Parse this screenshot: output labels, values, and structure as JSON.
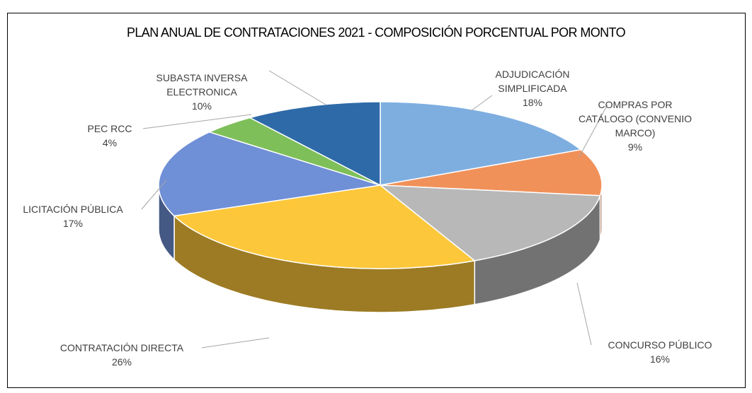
{
  "chart_data": {
    "type": "pie3d",
    "title": "PLAN ANUAL DE CONTRATACIONES 2021 - COMPOSICIÓN PORCENTUAL POR MONTO",
    "categories": [
      "ADJUDICACIÓN SIMPLIFICADA",
      "COMPRAS POR CATÁLOGO (CONVENIO MARCO)",
      "CONCURSO PÚBLICO",
      "CONTRATACIÓN DIRECTA",
      "LICITACIÓN PÚBLICA",
      "PEC RCC",
      "SUBASTA INVERSA ELECTRONICA"
    ],
    "values": [
      18,
      9,
      16,
      26,
      17,
      4,
      10
    ],
    "value_labels": [
      "18%",
      "9%",
      "16%",
      "26%",
      "17%",
      "4%",
      "10%"
    ],
    "colors": [
      "#7eaee0",
      "#f0915a",
      "#b8b8b8",
      "#fcc73a",
      "#6f8fd6",
      "#7fbf5a",
      "#2e6aa8"
    ]
  }
}
